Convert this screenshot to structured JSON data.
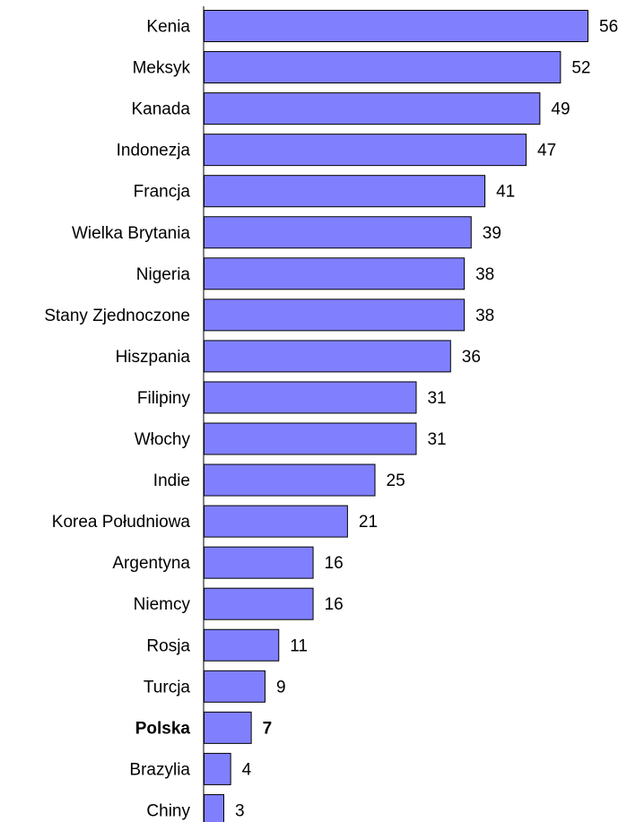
{
  "chart_data": {
    "type": "bar",
    "orientation": "horizontal",
    "title": "",
    "xlabel": "",
    "ylabel": "",
    "categories": [
      "Kenia",
      "Meksyk",
      "Kanada",
      "Indonezja",
      "Francja",
      "Wielka Brytania",
      "Nigeria",
      "Stany Zjednoczone",
      "Hiszpania",
      "Filipiny",
      "Włochy",
      "Indie",
      "Korea Południowa",
      "Argentyna",
      "Niemcy",
      "Rosja",
      "Turcja",
      "Polska",
      "Brazylia",
      "Chiny"
    ],
    "values": [
      56,
      52,
      49,
      47,
      41,
      39,
      38,
      38,
      36,
      31,
      31,
      25,
      21,
      16,
      16,
      11,
      9,
      7,
      4,
      3
    ],
    "value_labels": [
      "56",
      "52",
      "49",
      "47",
      "41",
      "39",
      "38",
      "38",
      "36",
      "31",
      "31",
      "25",
      "21",
      "16",
      "16",
      "11",
      "9",
      "7",
      "4",
      "3"
    ],
    "highlight": "Polska",
    "xlim": [
      0,
      56
    ],
    "grid": false,
    "legend": "none",
    "bar_color": "#8080ff",
    "bar_border_color": "#000000"
  }
}
